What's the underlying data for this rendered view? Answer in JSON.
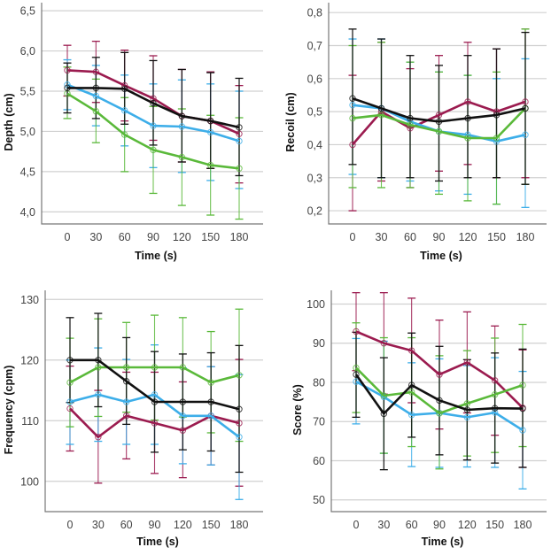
{
  "series_colors": {
    "maroon": "#9b1b4f",
    "black": "#111111",
    "blue": "#3daee9",
    "green": "#5ab93a"
  },
  "chart_data": [
    {
      "id": "depth",
      "type": "line",
      "title": "",
      "xlabel": "Time (s)",
      "ylabel": "Depth (cm)",
      "x": [
        "0",
        "30",
        "60",
        "90",
        "120",
        "150",
        "180"
      ],
      "yticks": [
        "4,0",
        "4,5",
        "5,0",
        "5,5",
        "6,0",
        "6,5"
      ],
      "ytick_values": [
        4.0,
        4.5,
        5.0,
        5.5,
        6.0,
        6.5
      ],
      "ylim": [
        3.85,
        6.6
      ],
      "grid": true,
      "error_bars": true,
      "series": [
        {
          "name": "maroon",
          "color_key": "maroon",
          "values": [
            5.76,
            5.74,
            5.57,
            5.41,
            5.19,
            5.13,
            4.97
          ],
          "err_high": [
            6.07,
            6.12,
            6.01,
            5.94,
            5.77,
            5.74,
            5.57
          ],
          "err_low": [
            5.44,
            5.36,
            5.13,
            4.89,
            4.62,
            4.54,
            4.36
          ]
        },
        {
          "name": "blue",
          "color_key": "blue",
          "values": [
            5.58,
            5.44,
            5.26,
            5.07,
            5.06,
            4.99,
            4.88
          ],
          "err_high": [
            5.89,
            5.82,
            5.7,
            5.59,
            5.64,
            5.59,
            5.5
          ],
          "err_low": [
            5.27,
            5.07,
            4.82,
            4.55,
            4.49,
            4.39,
            4.29
          ]
        },
        {
          "name": "green",
          "color_key": "green",
          "values": [
            5.47,
            5.25,
            4.96,
            4.77,
            4.68,
            4.58,
            4.54
          ],
          "err_high": [
            5.8,
            5.65,
            5.42,
            5.31,
            5.28,
            5.2,
            5.17
          ],
          "err_low": [
            5.16,
            4.86,
            4.5,
            4.23,
            4.08,
            3.96,
            3.91
          ]
        },
        {
          "name": "black",
          "color_key": "black",
          "values": [
            5.54,
            5.54,
            5.53,
            5.35,
            5.19,
            5.13,
            5.05
          ],
          "err_high": [
            5.85,
            5.92,
            5.98,
            5.88,
            5.77,
            5.73,
            5.66
          ],
          "err_low": [
            5.23,
            5.16,
            5.09,
            4.83,
            4.62,
            4.54,
            4.45
          ]
        }
      ]
    },
    {
      "id": "recoil",
      "type": "line",
      "title": "",
      "xlabel": "Time (s)",
      "ylabel": "Recoil (cm)",
      "x": [
        "0",
        "30",
        "60",
        "90",
        "120",
        "150",
        "180"
      ],
      "yticks": [
        "0,2",
        "0,3",
        "0,4",
        "0,5",
        "0,6",
        "0,7",
        "0,8"
      ],
      "ytick_values": [
        0.2,
        0.3,
        0.4,
        0.5,
        0.6,
        0.7,
        0.8
      ],
      "ylim": [
        0.16,
        0.83
      ],
      "grid": true,
      "error_bars": true,
      "series": [
        {
          "name": "maroon",
          "color_key": "maroon",
          "values": [
            0.4,
            0.5,
            0.45,
            0.49,
            0.53,
            0.5,
            0.53
          ],
          "err_high": [
            0.61,
            0.71,
            0.63,
            0.67,
            0.71,
            0.69,
            0.75
          ],
          "err_low": [
            0.2,
            0.29,
            0.27,
            0.32,
            0.34,
            0.3,
            0.3
          ]
        },
        {
          "name": "blue",
          "color_key": "blue",
          "values": [
            0.52,
            0.51,
            0.47,
            0.44,
            0.43,
            0.41,
            0.43
          ],
          "err_high": [
            0.72,
            0.72,
            0.65,
            0.62,
            0.61,
            0.6,
            0.66
          ],
          "err_low": [
            0.31,
            0.3,
            0.29,
            0.26,
            0.25,
            0.22,
            0.21
          ]
        },
        {
          "name": "green",
          "color_key": "green",
          "values": [
            0.48,
            0.49,
            0.46,
            0.44,
            0.42,
            0.42,
            0.51
          ],
          "err_high": [
            0.7,
            0.71,
            0.65,
            0.62,
            0.61,
            0.62,
            0.75
          ],
          "err_low": [
            0.27,
            0.27,
            0.27,
            0.25,
            0.23,
            0.22,
            0.28
          ]
        },
        {
          "name": "black",
          "color_key": "black",
          "values": [
            0.54,
            0.51,
            0.48,
            0.47,
            0.48,
            0.49,
            0.51
          ],
          "err_high": [
            0.75,
            0.72,
            0.67,
            0.64,
            0.67,
            0.69,
            0.74
          ],
          "err_low": [
            0.34,
            0.3,
            0.3,
            0.29,
            0.3,
            0.3,
            0.28
          ]
        }
      ]
    },
    {
      "id": "frequency",
      "type": "line",
      "title": "",
      "xlabel": "Time (s)",
      "ylabel": "Frequency (cpm)",
      "x": [
        "0",
        "30",
        "60",
        "90",
        "120",
        "150",
        "180"
      ],
      "yticks": [
        "100",
        "110",
        "120",
        "130"
      ],
      "ytick_values": [
        100,
        110,
        120,
        130
      ],
      "ylim": [
        95,
        131.5
      ],
      "grid": true,
      "error_bars": true,
      "series": [
        {
          "name": "maroon",
          "color_key": "maroon",
          "values": [
            112,
            107.3,
            110.8,
            109.6,
            108.4,
            110.8,
            109.6
          ],
          "err_high": [
            119,
            115,
            118,
            118,
            116.4,
            118.9,
            120.1
          ],
          "err_low": [
            105,
            99.7,
            103.7,
            101.3,
            100.6,
            102.7,
            99.2
          ]
        },
        {
          "name": "blue",
          "color_key": "blue",
          "values": [
            113.1,
            114.3,
            113.1,
            114.3,
            110.8,
            110.8,
            107.3
          ],
          "err_high": [
            120,
            122,
            120.1,
            122.5,
            118.7,
            118.9,
            117.6
          ],
          "err_low": [
            106.1,
            106.6,
            106.1,
            106.1,
            102.9,
            102.7,
            97
          ]
        },
        {
          "name": "green",
          "color_key": "green",
          "values": [
            116.3,
            118.8,
            118.8,
            118.8,
            118.8,
            116.3,
            117.5
          ],
          "err_high": [
            123.6,
            126.8,
            126.2,
            127.4,
            127,
            124.7,
            128.4
          ],
          "err_low": [
            109,
            110.7,
            111.4,
            110.1,
            110.6,
            108,
            106.6
          ]
        },
        {
          "name": "black",
          "color_key": "black",
          "values": [
            120,
            120,
            116.5,
            113.1,
            113.1,
            113.1,
            111.9
          ],
          "err_high": [
            127,
            127.7,
            123.7,
            121.4,
            121,
            121.2,
            122.4
          ],
          "err_low": [
            113,
            112.3,
            109.4,
            104.8,
            105.2,
            105,
            101.5
          ]
        }
      ]
    },
    {
      "id": "score",
      "type": "line",
      "title": "",
      "xlabel": "Time (s)",
      "ylabel": "Score (%)",
      "x": [
        "0",
        "30",
        "60",
        "90",
        "120",
        "150",
        "180"
      ],
      "yticks": [
        "50",
        "60",
        "70",
        "80",
        "90",
        "100"
      ],
      "ytick_values": [
        50,
        60,
        70,
        80,
        90,
        100
      ],
      "ylim": [
        47,
        103.5
      ],
      "grid": true,
      "error_bars": true,
      "series": [
        {
          "name": "maroon",
          "color_key": "maroon",
          "values": [
            93,
            90,
            88.1,
            82,
            85.1,
            80.5,
            73.5
          ],
          "err_high": [
            102.9,
            102.9,
            101.5,
            95.9,
            98,
            94.4,
            88.3
          ],
          "err_low": [
            83,
            77,
            74.8,
            68.1,
            72.2,
            66.5,
            58.3
          ]
        },
        {
          "name": "blue",
          "color_key": "blue",
          "values": [
            80.2,
            76.3,
            71.7,
            72.2,
            71.1,
            72.3,
            67.8
          ],
          "err_high": [
            91.2,
            90.5,
            85,
            86,
            84.3,
            86.3,
            82.8
          ],
          "err_low": [
            69.4,
            61.9,
            58.5,
            58.3,
            58.4,
            58.3,
            52.8
          ]
        },
        {
          "name": "green",
          "color_key": "green",
          "values": [
            83.7,
            76.6,
            77.5,
            72.1,
            74.6,
            76.9,
            79.3
          ],
          "err_high": [
            95.2,
            91.4,
            91.4,
            86.8,
            88.1,
            91.3,
            94.8
          ],
          "err_low": [
            72.3,
            61.9,
            63.6,
            57.9,
            61.2,
            62.1,
            63.6
          ]
        },
        {
          "name": "black",
          "color_key": "black",
          "values": [
            82,
            72,
            79.3,
            75.4,
            73,
            73.4,
            73.3
          ],
          "err_high": [
            92.8,
            86.3,
            92.6,
            89.2,
            85.8,
            87.5,
            88.5
          ],
          "err_low": [
            71.1,
            57.7,
            66,
            61.5,
            60.2,
            59.4,
            58.3
          ]
        }
      ]
    }
  ]
}
